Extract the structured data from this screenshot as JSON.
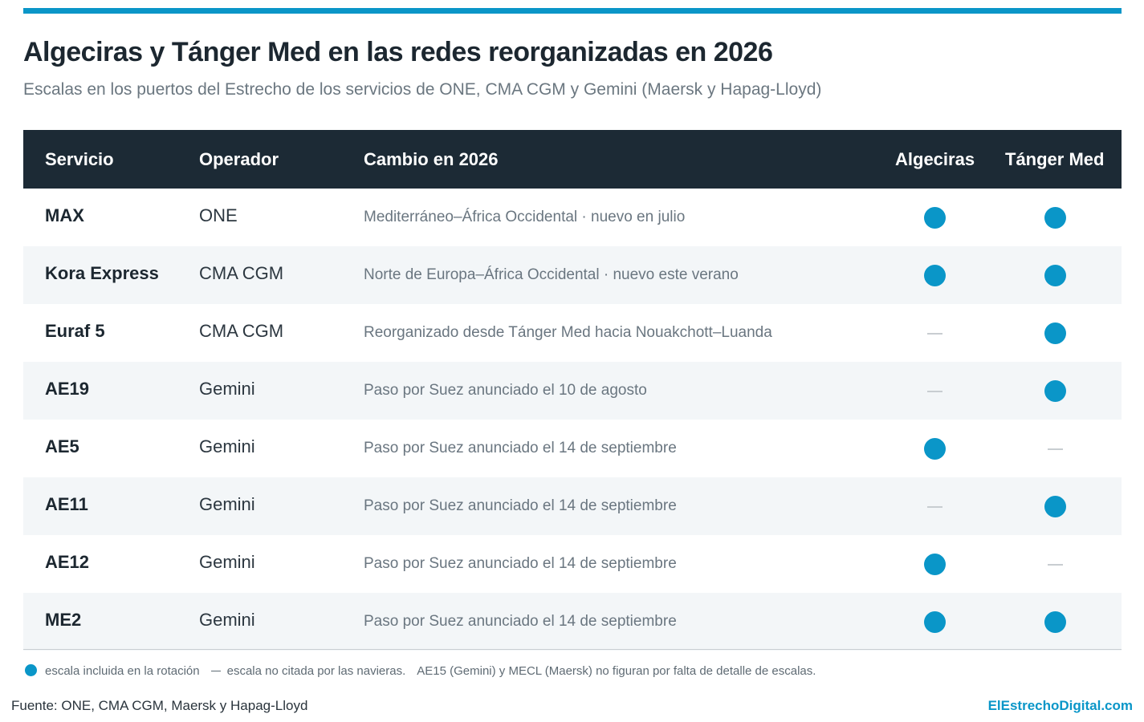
{
  "header": {
    "title": "Algeciras y Tánger Med en las redes reorganizadas en 2026",
    "subtitle": "Escalas en los puertos del Estrecho de los servicios de ONE, CMA CGM y Gemini (Maersk y Hapag-Lloyd)"
  },
  "table": {
    "columns": [
      "Servicio",
      "Operador",
      "Cambio en 2026",
      "Algeciras",
      "Tánger Med"
    ],
    "rows": [
      {
        "servicio": "MAX",
        "operador": "ONE",
        "cambio": "Mediterráneo–África Occidental · nuevo en julio",
        "algeciras": true,
        "tanger": true
      },
      {
        "servicio": "Kora Express",
        "operador": "CMA CGM",
        "cambio": "Norte de Europa–África Occidental · nuevo este verano",
        "algeciras": true,
        "tanger": true
      },
      {
        "servicio": "Euraf 5",
        "operador": "CMA CGM",
        "cambio": "Reorganizado desde Tánger Med hacia Nouakchott–Luanda",
        "algeciras": false,
        "tanger": true
      },
      {
        "servicio": "AE19",
        "operador": "Gemini",
        "cambio": "Paso por Suez anunciado el 10 de agosto",
        "algeciras": false,
        "tanger": true
      },
      {
        "servicio": "AE5",
        "operador": "Gemini",
        "cambio": "Paso por Suez anunciado el 14 de septiembre",
        "algeciras": true,
        "tanger": false
      },
      {
        "servicio": "AE11",
        "operador": "Gemini",
        "cambio": "Paso por Suez anunciado el 14 de septiembre",
        "algeciras": false,
        "tanger": true
      },
      {
        "servicio": "AE12",
        "operador": "Gemini",
        "cambio": "Paso por Suez anunciado el 14 de septiembre",
        "algeciras": true,
        "tanger": false
      },
      {
        "servicio": "ME2",
        "operador": "Gemini",
        "cambio": "Paso por Suez anunciado el 14 de septiembre",
        "algeciras": true,
        "tanger": true
      }
    ]
  },
  "legend": {
    "dot_label": "escala incluida en la rotación",
    "dash_label": "escala no citada por las navieras.",
    "note": "AE15 (Gemini) y MECL (Maersk) no figuran por falta de detalle de escalas."
  },
  "footer": {
    "source": "Fuente: ONE, CMA CGM, Maersk y Hapag-Lloyd",
    "brand": "ElEstrechoDigital.com"
  },
  "colors": {
    "accent": "#0a96c8",
    "header_bg": "#1c2a35",
    "row_alt_bg": "#f3f6f8"
  },
  "icons": {
    "included": "filled-circle",
    "not_cited": "dash"
  }
}
